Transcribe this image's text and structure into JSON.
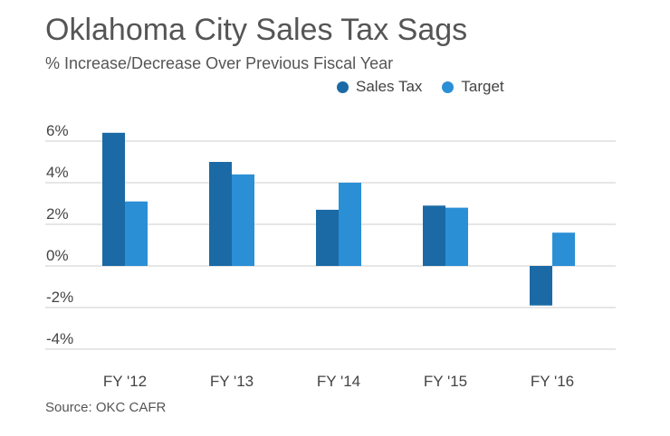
{
  "header": {
    "title": "Oklahoma City Sales Tax Sags",
    "subtitle": "% Increase/Decrease Over Previous Fiscal Year"
  },
  "footer": {
    "source": "Source: OKC CAFR"
  },
  "colors": {
    "sales_tax": "#1b6aa5",
    "target": "#2b8fd6",
    "grid": "#cccccc"
  },
  "chart_data": {
    "type": "bar",
    "categories": [
      "FY '12",
      "FY '13",
      "FY '14",
      "FY '15",
      "FY '16"
    ],
    "series": [
      {
        "name": "Sales Tax",
        "values": [
          6.4,
          5.0,
          2.7,
          2.9,
          -1.9
        ]
      },
      {
        "name": "Target",
        "values": [
          3.1,
          4.4,
          4.0,
          2.8,
          1.6
        ]
      }
    ],
    "ylim": [
      -4,
      6
    ],
    "yticks": [
      6,
      4,
      2,
      0,
      -2,
      -4
    ],
    "ytick_labels": [
      "6%",
      "4%",
      "2%",
      "0%",
      "-2%",
      "-4%"
    ],
    "legend_position": "top-right",
    "grid": true
  }
}
